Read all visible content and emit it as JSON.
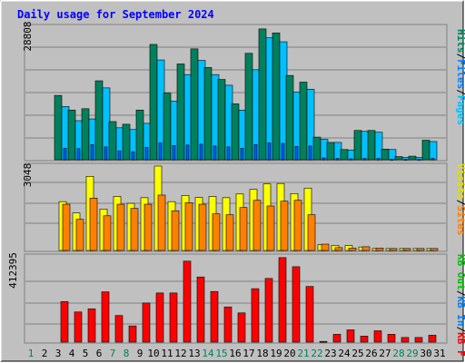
{
  "title": "Daily usage for September 2024",
  "colors": {
    "hits": "#00805c",
    "files": "#00c0ff",
    "pages": "#00e0ff",
    "visits": "#ffff00",
    "sites": "#ff8000",
    "kbytes": "#ff0000",
    "kb_in": "#0080ff",
    "kb_out": "#00ff00",
    "title_text": "#0000ff"
  },
  "chart_data": [
    {
      "type": "bar",
      "panel": "top",
      "y_tick_label": "28808",
      "legend_labels": [
        "Pages",
        "Files",
        "Hits"
      ],
      "legend_separator": "/",
      "categories": [
        "1",
        "2",
        "3",
        "4",
        "5",
        "6",
        "7",
        "8",
        "9",
        "10",
        "11",
        "12",
        "13",
        "14",
        "15",
        "16",
        "17",
        "18",
        "19",
        "20",
        "21",
        "22",
        "23",
        "24",
        "25",
        "26",
        "27",
        "28",
        "29",
        "30",
        "31"
      ],
      "weekend_days": [
        "1",
        "7",
        "8",
        "14",
        "15",
        "21",
        "22",
        "28",
        "29"
      ],
      "series": [
        {
          "name": "Hits",
          "values": [
            0,
            0,
            14500,
            11200,
            11500,
            17800,
            8600,
            8000,
            11200,
            26000,
            15000,
            21600,
            25000,
            20800,
            18100,
            12600,
            24000,
            29500,
            28600,
            19000,
            17500,
            5100,
            3900,
            2300,
            6600,
            6600,
            2400,
            700,
            800,
            4400,
            0
          ]
        },
        {
          "name": "Files",
          "values": [
            0,
            0,
            12000,
            8800,
            9200,
            16200,
            7200,
            6800,
            8200,
            22500,
            13200,
            19200,
            22400,
            19200,
            16800,
            11200,
            20300,
            27500,
            26600,
            15300,
            15900,
            4600,
            3900,
            2200,
            6400,
            6200,
            2300,
            500,
            500,
            4100,
            0
          ]
        },
        {
          "name": "Pages",
          "values": [
            0,
            0,
            2600,
            2500,
            3400,
            2900,
            2000,
            1800,
            2800,
            3800,
            3200,
            3300,
            3500,
            3100,
            2900,
            2600,
            3400,
            3800,
            3700,
            3000,
            3100,
            400,
            300,
            200,
            300,
            300,
            100,
            100,
            100,
            300,
            0
          ]
        }
      ]
    },
    {
      "type": "bar",
      "panel": "middle",
      "y_tick_label": "3048",
      "legend_labels": [
        "Visits",
        "Sites"
      ],
      "legend_separator": "/",
      "categories": [
        "1",
        "2",
        "3",
        "4",
        "5",
        "6",
        "7",
        "8",
        "9",
        "10",
        "11",
        "12",
        "13",
        "14",
        "15",
        "16",
        "17",
        "18",
        "19",
        "20",
        "21",
        "22",
        "23",
        "24",
        "25",
        "26",
        "27",
        "28",
        "29",
        "30",
        "31"
      ],
      "series": [
        {
          "name": "Visits",
          "values": [
            0,
            0,
            2240,
            1720,
            3400,
            1900,
            2480,
            2160,
            2420,
            3870,
            2240,
            2520,
            2430,
            2480,
            2420,
            2590,
            2800,
            3050,
            3070,
            2610,
            2860,
            270,
            230,
            230,
            160,
            90,
            90,
            90,
            90,
            90,
            0
          ]
        },
        {
          "name": "Sites",
          "values": [
            0,
            0,
            2120,
            1430,
            2400,
            1590,
            2120,
            1930,
            2120,
            2540,
            1820,
            2190,
            2120,
            1680,
            1640,
            1970,
            2300,
            2040,
            2260,
            2300,
            1640,
            290,
            130,
            110,
            170,
            110,
            90,
            90,
            90,
            90,
            0
          ]
        }
      ]
    },
    {
      "type": "bar",
      "panel": "bottom",
      "y_tick_label": "412395",
      "legend_labels": [
        "KB F",
        "KB In",
        "KB Out"
      ],
      "legend_separator": "/",
      "categories": [
        "1",
        "2",
        "3",
        "4",
        "5",
        "6",
        "7",
        "8",
        "9",
        "10",
        "11",
        "12",
        "13",
        "14",
        "15",
        "16",
        "17",
        "18",
        "19",
        "20",
        "21",
        "22",
        "23",
        "24",
        "25",
        "26",
        "27",
        "28",
        "29",
        "30",
        "31"
      ],
      "series": [
        {
          "name": "KB F",
          "values": [
            0,
            0,
            218000,
            162000,
            179000,
            270000,
            143000,
            87000,
            210000,
            264000,
            264000,
            435000,
            350000,
            272000,
            189000,
            157000,
            287000,
            342000,
            454000,
            405000,
            299000,
            4000,
            42000,
            66000,
            32000,
            61000,
            42000,
            25000,
            25000,
            37000,
            0
          ]
        }
      ]
    }
  ]
}
